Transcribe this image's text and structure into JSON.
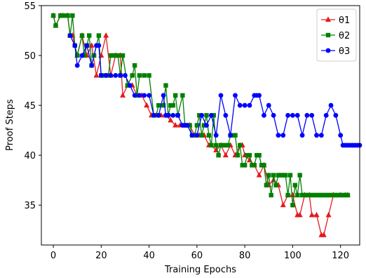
{
  "chart_data": {
    "type": "line",
    "title": "",
    "xlabel": "Training Epochs",
    "ylabel": "Proof Steps",
    "xlim": [
      -5,
      128
    ],
    "ylim": [
      31,
      55
    ],
    "xticks": [
      0,
      20,
      40,
      60,
      80,
      100,
      120
    ],
    "yticks": [
      35,
      40,
      45,
      50,
      55
    ],
    "grid": false,
    "legend": "top-right",
    "series": [
      {
        "name": "θ1",
        "color": "#e41a1c",
        "marker": "triangle",
        "points": [
          [
            0,
            54
          ],
          [
            1,
            53
          ],
          [
            3,
            54
          ],
          [
            4,
            54
          ],
          [
            6,
            54
          ],
          [
            7,
            52
          ],
          [
            8,
            52
          ],
          [
            10,
            50
          ],
          [
            12,
            52
          ],
          [
            14,
            50
          ],
          [
            16,
            51
          ],
          [
            18,
            48
          ],
          [
            20,
            50
          ],
          [
            22,
            52
          ],
          [
            24,
            48
          ],
          [
            26,
            50
          ],
          [
            28,
            50
          ],
          [
            29,
            46
          ],
          [
            31,
            47
          ],
          [
            33,
            47
          ],
          [
            35,
            46
          ],
          [
            37,
            46
          ],
          [
            39,
            45
          ],
          [
            41,
            44
          ],
          [
            43,
            44
          ],
          [
            45,
            44
          ],
          [
            47,
            44
          ],
          [
            49,
            43.5
          ],
          [
            51,
            43
          ],
          [
            53,
            43
          ],
          [
            55,
            43
          ],
          [
            57,
            43
          ],
          [
            59,
            42
          ],
          [
            61,
            42
          ],
          [
            63,
            42
          ],
          [
            65,
            41
          ],
          [
            66,
            41
          ],
          [
            68,
            40.5
          ],
          [
            70,
            41
          ],
          [
            72,
            40
          ],
          [
            74,
            41
          ],
          [
            76,
            40
          ],
          [
            78,
            41
          ],
          [
            79,
            41
          ],
          [
            80,
            40
          ],
          [
            82,
            39.5
          ],
          [
            84,
            39
          ],
          [
            86,
            38
          ],
          [
            88,
            39
          ],
          [
            90,
            37
          ],
          [
            92,
            37.5
          ],
          [
            94,
            37
          ],
          [
            96,
            35
          ],
          [
            98,
            36
          ],
          [
            100,
            36
          ],
          [
            102,
            34
          ],
          [
            103,
            34
          ],
          [
            105,
            36
          ],
          [
            107,
            36
          ],
          [
            108,
            34
          ],
          [
            110,
            34
          ],
          [
            112,
            32
          ],
          [
            113,
            32
          ],
          [
            115,
            34
          ],
          [
            117,
            36
          ],
          [
            120,
            36
          ],
          [
            122,
            36
          ],
          [
            123,
            36
          ]
        ]
      },
      {
        "name": "θ2",
        "color": "#008000",
        "marker": "square",
        "points": [
          [
            0,
            54
          ],
          [
            1,
            53
          ],
          [
            3,
            54
          ],
          [
            4,
            54
          ],
          [
            5,
            54
          ],
          [
            6,
            54
          ],
          [
            7,
            52
          ],
          [
            8,
            54
          ],
          [
            9,
            51
          ],
          [
            10,
            50
          ],
          [
            12,
            52
          ],
          [
            13,
            50
          ],
          [
            14,
            51
          ],
          [
            15,
            52
          ],
          [
            16,
            49
          ],
          [
            17,
            50
          ],
          [
            19,
            52
          ],
          [
            20,
            48
          ],
          [
            21,
            48
          ],
          [
            23,
            48
          ],
          [
            24,
            50
          ],
          [
            25,
            50
          ],
          [
            26,
            50
          ],
          [
            27,
            50
          ],
          [
            28,
            48
          ],
          [
            29,
            50
          ],
          [
            31,
            47
          ],
          [
            33,
            48
          ],
          [
            34,
            49
          ],
          [
            35,
            46
          ],
          [
            36,
            48
          ],
          [
            38,
            48
          ],
          [
            40,
            48
          ],
          [
            42,
            44
          ],
          [
            43,
            44
          ],
          [
            44,
            45
          ],
          [
            46,
            45
          ],
          [
            47,
            47
          ],
          [
            48,
            44
          ],
          [
            49,
            45
          ],
          [
            50,
            45
          ],
          [
            51,
            46
          ],
          [
            52,
            44
          ],
          [
            54,
            46
          ],
          [
            55,
            43
          ],
          [
            57,
            43
          ],
          [
            58,
            42
          ],
          [
            59,
            42
          ],
          [
            60,
            43
          ],
          [
            61,
            44
          ],
          [
            62,
            42
          ],
          [
            63,
            43
          ],
          [
            64,
            44
          ],
          [
            65,
            42
          ],
          [
            66,
            41
          ],
          [
            67,
            44
          ],
          [
            68,
            41
          ],
          [
            69,
            40
          ],
          [
            70,
            41
          ],
          [
            71,
            41
          ],
          [
            72,
            41
          ],
          [
            73,
            41
          ],
          [
            74,
            42
          ],
          [
            75,
            42
          ],
          [
            76,
            42
          ],
          [
            77,
            40
          ],
          [
            78,
            41
          ],
          [
            79,
            39
          ],
          [
            80,
            39
          ],
          [
            81,
            40
          ],
          [
            82,
            40
          ],
          [
            83,
            39
          ],
          [
            84,
            39
          ],
          [
            85,
            40
          ],
          [
            86,
            40
          ],
          [
            87,
            39
          ],
          [
            88,
            39
          ],
          [
            89,
            37
          ],
          [
            90,
            38
          ],
          [
            91,
            36
          ],
          [
            92,
            38
          ],
          [
            93,
            37
          ],
          [
            94,
            38
          ],
          [
            95,
            38
          ],
          [
            96,
            38
          ],
          [
            97,
            38
          ],
          [
            98,
            36
          ],
          [
            99,
            38
          ],
          [
            100,
            35
          ],
          [
            101,
            37
          ],
          [
            102,
            36
          ],
          [
            103,
            38
          ],
          [
            104,
            36
          ],
          [
            105,
            36
          ],
          [
            106,
            36
          ],
          [
            107,
            36
          ],
          [
            108,
            36
          ],
          [
            109,
            36
          ],
          [
            110,
            36
          ],
          [
            111,
            36
          ],
          [
            112,
            36
          ],
          [
            113,
            36
          ],
          [
            114,
            36
          ],
          [
            115,
            36
          ],
          [
            116,
            36
          ],
          [
            117,
            36
          ],
          [
            118,
            36
          ],
          [
            119,
            36
          ],
          [
            120,
            36
          ],
          [
            121,
            36
          ],
          [
            122,
            36
          ],
          [
            123,
            36
          ]
        ]
      },
      {
        "name": "θ3",
        "color": "#0000ff",
        "marker": "circle",
        "points": [
          [
            7,
            52
          ],
          [
            9,
            51
          ],
          [
            10,
            49
          ],
          [
            12,
            50
          ],
          [
            14,
            51
          ],
          [
            16,
            49
          ],
          [
            18,
            51
          ],
          [
            19,
            51
          ],
          [
            20,
            48
          ],
          [
            22,
            48
          ],
          [
            24,
            48
          ],
          [
            26,
            48
          ],
          [
            28,
            48
          ],
          [
            30,
            48
          ],
          [
            32,
            47
          ],
          [
            34,
            46
          ],
          [
            36,
            46
          ],
          [
            38,
            46
          ],
          [
            40,
            46
          ],
          [
            42,
            44
          ],
          [
            44,
            44
          ],
          [
            46,
            46
          ],
          [
            47,
            44
          ],
          [
            48,
            44
          ],
          [
            50,
            44
          ],
          [
            52,
            44
          ],
          [
            54,
            43
          ],
          [
            55,
            43
          ],
          [
            56,
            43
          ],
          [
            58,
            42
          ],
          [
            60,
            42
          ],
          [
            62,
            44
          ],
          [
            64,
            43
          ],
          [
            66,
            44
          ],
          [
            68,
            42
          ],
          [
            70,
            46
          ],
          [
            72,
            44
          ],
          [
            74,
            42
          ],
          [
            76,
            46
          ],
          [
            78,
            45
          ],
          [
            80,
            45
          ],
          [
            82,
            45
          ],
          [
            84,
            46
          ],
          [
            85,
            46
          ],
          [
            86,
            46
          ],
          [
            88,
            44
          ],
          [
            90,
            45
          ],
          [
            92,
            44
          ],
          [
            94,
            42
          ],
          [
            96,
            42
          ],
          [
            98,
            44
          ],
          [
            100,
            44
          ],
          [
            102,
            44
          ],
          [
            104,
            42
          ],
          [
            106,
            44
          ],
          [
            108,
            44
          ],
          [
            110,
            42
          ],
          [
            112,
            42
          ],
          [
            114,
            44
          ],
          [
            116,
            45
          ],
          [
            118,
            44
          ],
          [
            120,
            42
          ],
          [
            121,
            41
          ],
          [
            122,
            41
          ],
          [
            123,
            41
          ],
          [
            124,
            41
          ],
          [
            125,
            41
          ],
          [
            126,
            41
          ],
          [
            127,
            41
          ],
          [
            128,
            41
          ]
        ]
      }
    ]
  }
}
